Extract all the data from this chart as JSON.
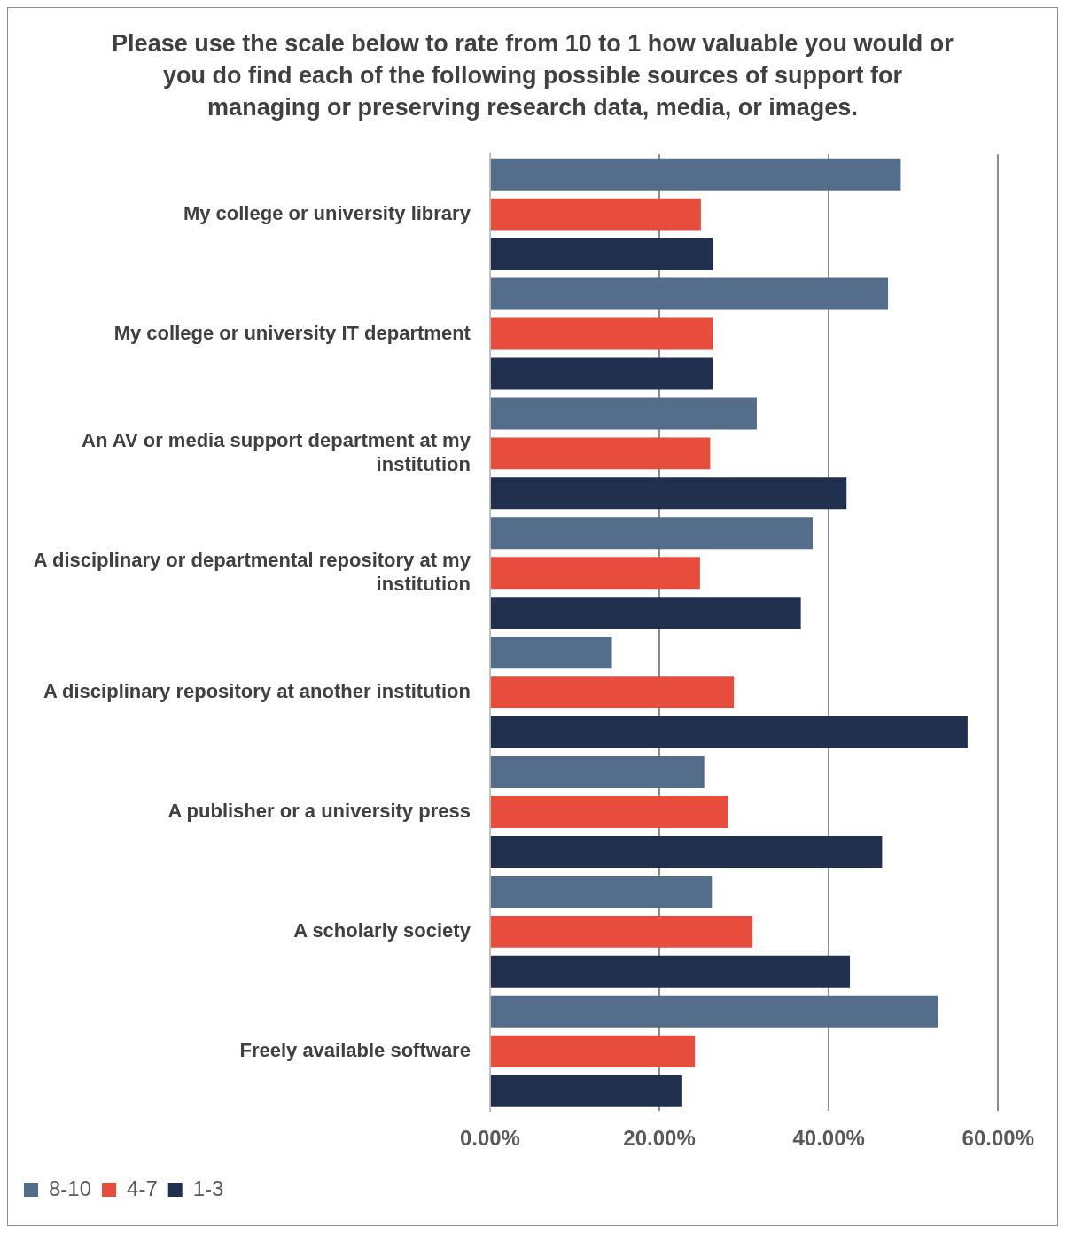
{
  "chart_data": {
    "type": "bar",
    "orientation": "horizontal",
    "title": "Please use the scale below to rate from 10 to 1 how valuable you would or you do find each of the following possible sources of support for managing or preserving research data, media, or images.",
    "categories": [
      "My college or university library",
      "My college or university IT department",
      "An AV or media support department at my institution",
      "A disciplinary or departmental repository at my institution",
      "A disciplinary repository at another institution",
      "A publisher or a university press",
      "A scholarly society",
      "Freely available software"
    ],
    "series": [
      {
        "name": "8-10",
        "color": "#536d8a",
        "values": [
          48.5,
          47.0,
          31.5,
          38.1,
          14.4,
          25.3,
          26.2,
          52.9
        ]
      },
      {
        "name": "4-7",
        "color": "#e84c3d",
        "values": [
          24.9,
          26.3,
          26.0,
          24.8,
          28.8,
          28.1,
          31.0,
          24.2
        ]
      },
      {
        "name": "1-3",
        "color": "#22304f",
        "values": [
          26.3,
          26.3,
          42.1,
          36.7,
          56.4,
          46.3,
          42.5,
          22.7
        ]
      }
    ],
    "xlim": [
      0,
      60
    ],
    "xticks": [
      {
        "value": 0,
        "label": "0.00%"
      },
      {
        "value": 20,
        "label": "20.00%"
      },
      {
        "value": 40,
        "label": "40.00%"
      },
      {
        "value": 60,
        "label": "60.00%"
      }
    ],
    "grid": "x",
    "legend": "bottom left"
  }
}
